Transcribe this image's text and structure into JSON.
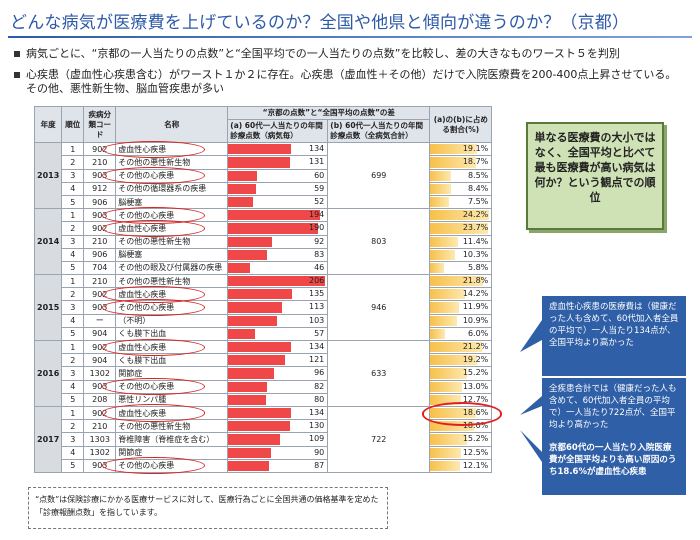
{
  "title": "どんな病気が医療費を上げているのか？全国や他県と傾向が違うのか？（京都）",
  "bullets": {
    "b1": "病気ごとに、“京都の一人当たりの点数”と“全国平均での一人当たりの点数”を比較し、差の大きなものワースト５を判別",
    "b2a": "心疾患（虚血性心疾患含む）がワースト１か２に存在。心疾患（虚血性＋その他）だけで入院医療費を200-400点上昇させている。",
    "b2b": "その他、悪性新生物、脳血管疾患が多い"
  },
  "table": {
    "headers": {
      "year": "年度",
      "rank": "順位",
      "code": "疾病分類コード",
      "name": "名称",
      "group": "“京都の点数”と“全国平均の点数”の差",
      "a": "(a) 60代一人当たりの年間診療点数（病気毎）",
      "b": "(b) 60代一人当たりの年間診療点数（全病気合計）",
      "ratio": "(a)の(b)に占める割合(%)"
    },
    "groups": [
      {
        "year": "2013",
        "total": "699",
        "rows": [
          {
            "rank": "1",
            "code": "902",
            "name": "虚血性心疾患",
            "a": "134",
            "pct": "19.1%"
          },
          {
            "rank": "2",
            "code": "210",
            "name": "その他の悪性新生物",
            "a": "131",
            "pct": "18.7%"
          },
          {
            "rank": "3",
            "code": "903",
            "name": "その他の心疾患",
            "a": "60",
            "pct": "8.5%"
          },
          {
            "rank": "4",
            "code": "912",
            "name": "その他の循環器系の疾患",
            "a": "59",
            "pct": "8.4%"
          },
          {
            "rank": "5",
            "code": "906",
            "name": "脳梗塞",
            "a": "52",
            "pct": "7.5%"
          }
        ]
      },
      {
        "year": "2014",
        "total": "803",
        "rows": [
          {
            "rank": "1",
            "code": "903",
            "name": "その他の心疾患",
            "a": "194",
            "pct": "24.2%"
          },
          {
            "rank": "2",
            "code": "902",
            "name": "虚血性心疾患",
            "a": "190",
            "pct": "23.7%"
          },
          {
            "rank": "3",
            "code": "210",
            "name": "その他の悪性新生物",
            "a": "92",
            "pct": "11.4%"
          },
          {
            "rank": "4",
            "code": "906",
            "name": "脳梗塞",
            "a": "83",
            "pct": "10.3%"
          },
          {
            "rank": "5",
            "code": "704",
            "name": "その他の眼及び付属器の疾患",
            "a": "46",
            "pct": "5.8%"
          }
        ]
      },
      {
        "year": "2015",
        "total": "946",
        "rows": [
          {
            "rank": "1",
            "code": "210",
            "name": "その他の悪性新生物",
            "a": "206",
            "pct": "21.8%"
          },
          {
            "rank": "2",
            "code": "902",
            "name": "虚血性心疾患",
            "a": "135",
            "pct": "14.2%"
          },
          {
            "rank": "3",
            "code": "903",
            "name": "その他の心疾患",
            "a": "113",
            "pct": "11.9%"
          },
          {
            "rank": "4",
            "code": "ー",
            "name": "（不明）",
            "a": "103",
            "pct": "10.9%"
          },
          {
            "rank": "5",
            "code": "904",
            "name": "くも膜下出血",
            "a": "57",
            "pct": "6.0%"
          }
        ]
      },
      {
        "year": "2016",
        "total": "633",
        "rows": [
          {
            "rank": "1",
            "code": "902",
            "name": "虚血性心疾患",
            "a": "134",
            "pct": "21.2%"
          },
          {
            "rank": "2",
            "code": "904",
            "name": "くも膜下出血",
            "a": "121",
            "pct": "19.2%"
          },
          {
            "rank": "3",
            "code": "1302",
            "name": "関節症",
            "a": "96",
            "pct": "15.2%"
          },
          {
            "rank": "4",
            "code": "903",
            "name": "その他の心疾患",
            "a": "82",
            "pct": "13.0%"
          },
          {
            "rank": "5",
            "code": "208",
            "name": "悪性リンパ腫",
            "a": "80",
            "pct": "12.7%"
          }
        ]
      },
      {
        "year": "2017",
        "total": "722",
        "rows": [
          {
            "rank": "1",
            "code": "902",
            "name": "虚血性心疾患",
            "a": "134",
            "pct": "18.6%"
          },
          {
            "rank": "2",
            "code": "210",
            "name": "その他の悪性新生物",
            "a": "130",
            "pct": "18.0%"
          },
          {
            "rank": "3",
            "code": "1303",
            "name": "脊椎障害（脊椎症を含む）",
            "a": "109",
            "pct": "15.2%"
          },
          {
            "rank": "4",
            "code": "1302",
            "name": "関節症",
            "a": "90",
            "pct": "12.5%"
          },
          {
            "rank": "5",
            "code": "903",
            "name": "その他の心疾患",
            "a": "87",
            "pct": "12.1%"
          }
        ]
      }
    ]
  },
  "callout_green": "単なる医療費の大小ではなく、全国平均と比べて最も医療費が高い病気は何か？という観点での順位",
  "callout_blue1": "虚血性心疾患の医療費は（健康だった人も含めて、60代加入者全員の平均で）一人当たり134点が、全国平均より高かった",
  "callout_blue2": "全疾患合計では（健康だった人も含めて、60代加入者全員の平均で）一人当たり722点が、全国平均より高かった",
  "callout_blue3": "京都60代の一人当たり入院医療費が全国平均よりも高い原因のうち18.6%が虚血性心疾患",
  "note": "“点数”は保険診療にかかる医療サービスに対して、医療行為ごとに全国共通の価格基準を定めた「診療報酬点数」を指しています。",
  "colors": {
    "title": "#2e5aa8",
    "bar": "#f04848",
    "pct": "#f7c04a",
    "callout_blue": "#2f5fa6",
    "callout_green": "#cfe2b6",
    "highlight_oval": "#e02020"
  }
}
